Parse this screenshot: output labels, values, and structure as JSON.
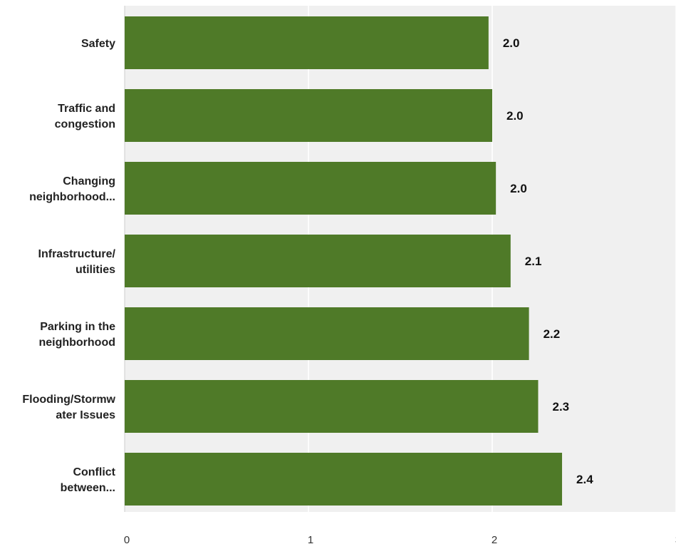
{
  "chart_data": {
    "type": "bar",
    "orientation": "horizontal",
    "categories": [
      [
        "Safety"
      ],
      [
        "Traffic and",
        "congestion"
      ],
      [
        "Changing",
        "neighborhood..."
      ],
      [
        "Infrastructure/",
        "utilities"
      ],
      [
        "Parking in the",
        "neighborhood"
      ],
      [
        "Flooding/Stormw",
        "ater Issues"
      ],
      [
        "Conflict",
        "between..."
      ]
    ],
    "values": [
      1.98,
      2.0,
      2.02,
      2.1,
      2.2,
      2.25,
      2.38
    ],
    "value_labels": [
      "2.0",
      "2.0",
      "2.0",
      "2.1",
      "2.2",
      "2.3",
      "2.4"
    ],
    "xlim": [
      0,
      3
    ],
    "x_ticks": [
      0,
      1,
      2,
      3
    ],
    "title": "",
    "xlabel": "",
    "ylabel": "",
    "grid": true,
    "colors": {
      "bar": "#4f7a28",
      "plot_background": "#f0f0f0",
      "gridline": "#ffffff",
      "axis": "#cccccc"
    }
  }
}
